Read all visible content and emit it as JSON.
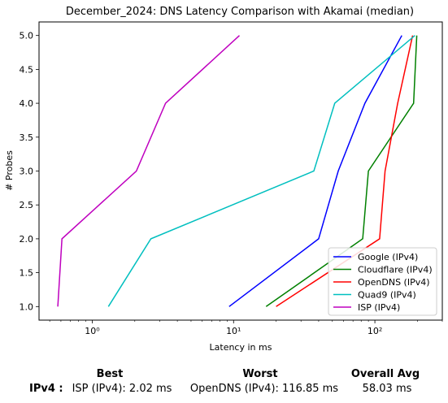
{
  "chart_data": {
    "type": "line",
    "title": "December_2024: DNS Latency Comparison with Akamai (median)",
    "xlabel": "Latency in ms",
    "ylabel": "# Probes",
    "xscale": "log",
    "xlim": [
      0.42,
      300
    ],
    "ylim": [
      0.8,
      5.2
    ],
    "xticks": [
      {
        "value": 1,
        "label": "10⁰"
      },
      {
        "value": 10,
        "label": "10¹"
      },
      {
        "value": 100,
        "label": "10²"
      }
    ],
    "yticks": [
      "1.0",
      "1.5",
      "2.0",
      "2.5",
      "3.0",
      "3.5",
      "4.0",
      "4.5",
      "5.0"
    ],
    "grid": false,
    "legend_position": "lower right",
    "series": [
      {
        "name": "Google (IPv4)",
        "color": "#0000ff",
        "points": [
          [
            9.3,
            1
          ],
          [
            40,
            2
          ],
          [
            55,
            3
          ],
          [
            85,
            4
          ],
          [
            155,
            5
          ]
        ]
      },
      {
        "name": "Cloudflare (IPv4)",
        "color": "#008000",
        "points": [
          [
            17,
            1
          ],
          [
            82,
            2
          ],
          [
            90,
            3
          ],
          [
            188,
            4
          ],
          [
            198,
            5
          ]
        ]
      },
      {
        "name": "OpenDNS (IPv4)",
        "color": "#ff0000",
        "points": [
          [
            20,
            1
          ],
          [
            108,
            2
          ],
          [
            118,
            3
          ],
          [
            145,
            4
          ],
          [
            185,
            5
          ]
        ]
      },
      {
        "name": "Quad9 (IPv4)",
        "color": "#00bfbf",
        "points": [
          [
            1.3,
            1
          ],
          [
            2.6,
            2
          ],
          [
            37,
            3
          ],
          [
            52,
            4
          ],
          [
            192,
            5
          ]
        ]
      },
      {
        "name": "ISP (IPv4)",
        "color": "#bf00bf",
        "points": [
          [
            0.57,
            1
          ],
          [
            0.61,
            2
          ],
          [
            2.05,
            3
          ],
          [
            3.3,
            4
          ],
          [
            11,
            5
          ]
        ]
      }
    ]
  },
  "stats": {
    "best_header": "Best",
    "worst_header": "Worst",
    "avg_header": "Overall Avg",
    "row_label": "IPv4 :",
    "best_value": "ISP (IPv4): 2.02 ms",
    "worst_value": "OpenDNS (IPv4): 116.85 ms",
    "avg_value": "58.03 ms"
  }
}
